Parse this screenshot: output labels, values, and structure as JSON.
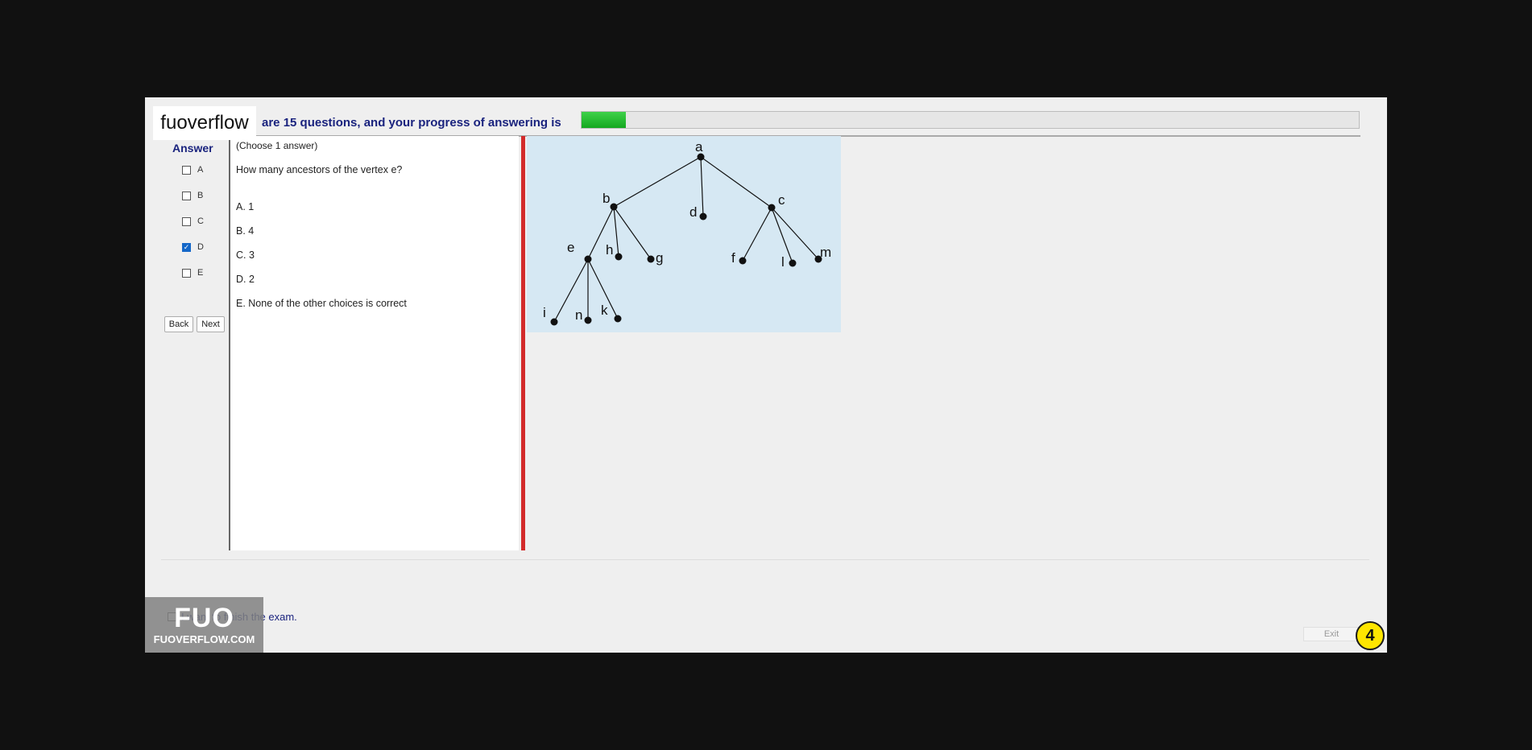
{
  "brand": "fuoverflow",
  "header": {
    "progress_text": "are 15 questions, and your progress of answering is",
    "progress_fraction": 0.057
  },
  "answer_panel": {
    "title": "Answer",
    "options": [
      {
        "label": "A",
        "checked": false
      },
      {
        "label": "B",
        "checked": false
      },
      {
        "label": "C",
        "checked": false
      },
      {
        "label": "D",
        "checked": true
      },
      {
        "label": "E",
        "checked": false
      }
    ],
    "back_label": "Back",
    "next_label": "Next"
  },
  "question": {
    "instruction": "(Choose 1 answer)",
    "text": "How many ancestors of the vertex e?",
    "choices": [
      "A.  1",
      "B.  4",
      "C.  3",
      "D.  2",
      "E.  None of the other choices is correct"
    ]
  },
  "tree": {
    "vertices": [
      "a",
      "b",
      "c",
      "d",
      "e",
      "f",
      "g",
      "h",
      "i",
      "k",
      "l",
      "m",
      "n"
    ]
  },
  "footer": {
    "finish_text": "I want to finish the exam.",
    "exit_label": "Exit"
  },
  "watermark": {
    "big": "FUO",
    "small": "FUOVERFLOW.COM"
  },
  "step_badge": "4",
  "colors": {
    "accent_blue": "#1a237e",
    "progress_green": "#14a820",
    "separator_red": "#d32b2b",
    "badge_yellow": "#ffe600"
  }
}
